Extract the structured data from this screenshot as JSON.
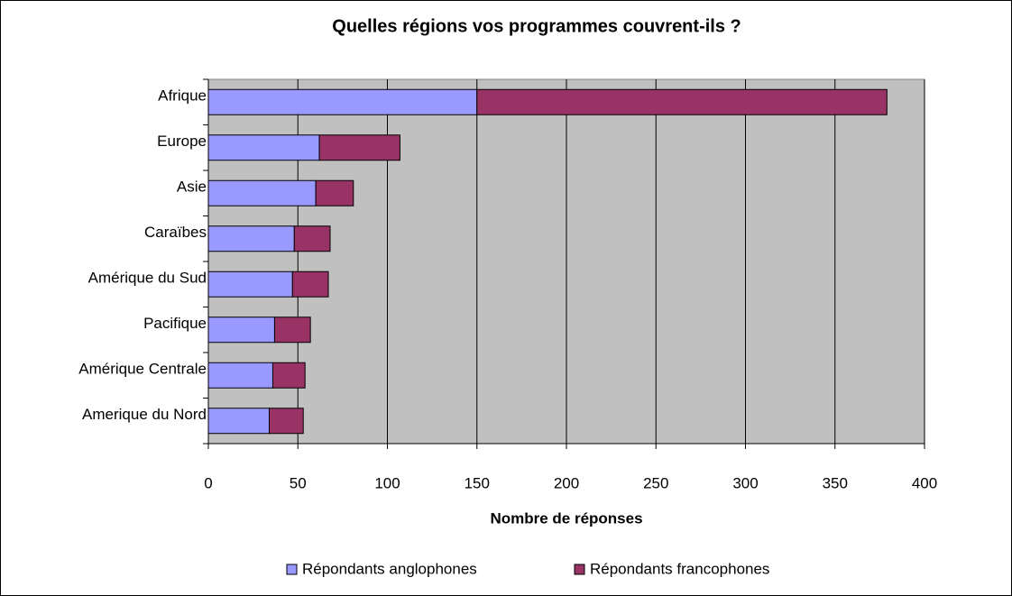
{
  "chart_data": {
    "type": "stacked_barh",
    "title": "Quelles régions vos programmes couvrent-ils ?",
    "x_label": "Nombre de réponses",
    "categories": [
      "Afrique",
      "Europe",
      "Asie",
      "Caraïbes",
      "Amérique du Sud",
      "Pacifique",
      "Amérique Centrale",
      "Amerique du Nord"
    ],
    "series": [
      {
        "name": "Répondants anglophones",
        "color": "#9999ff",
        "values": [
          150,
          62,
          60,
          48,
          47,
          37,
          36,
          34
        ]
      },
      {
        "name": "Répondants francophones",
        "color": "#993366",
        "values": [
          229,
          45,
          21,
          20,
          20,
          20,
          18,
          19
        ]
      }
    ],
    "xlim": [
      0,
      400
    ],
    "xticks": [
      0,
      50,
      100,
      150,
      200,
      250,
      300,
      350,
      400
    ],
    "grid": true,
    "legend": "bottom"
  }
}
